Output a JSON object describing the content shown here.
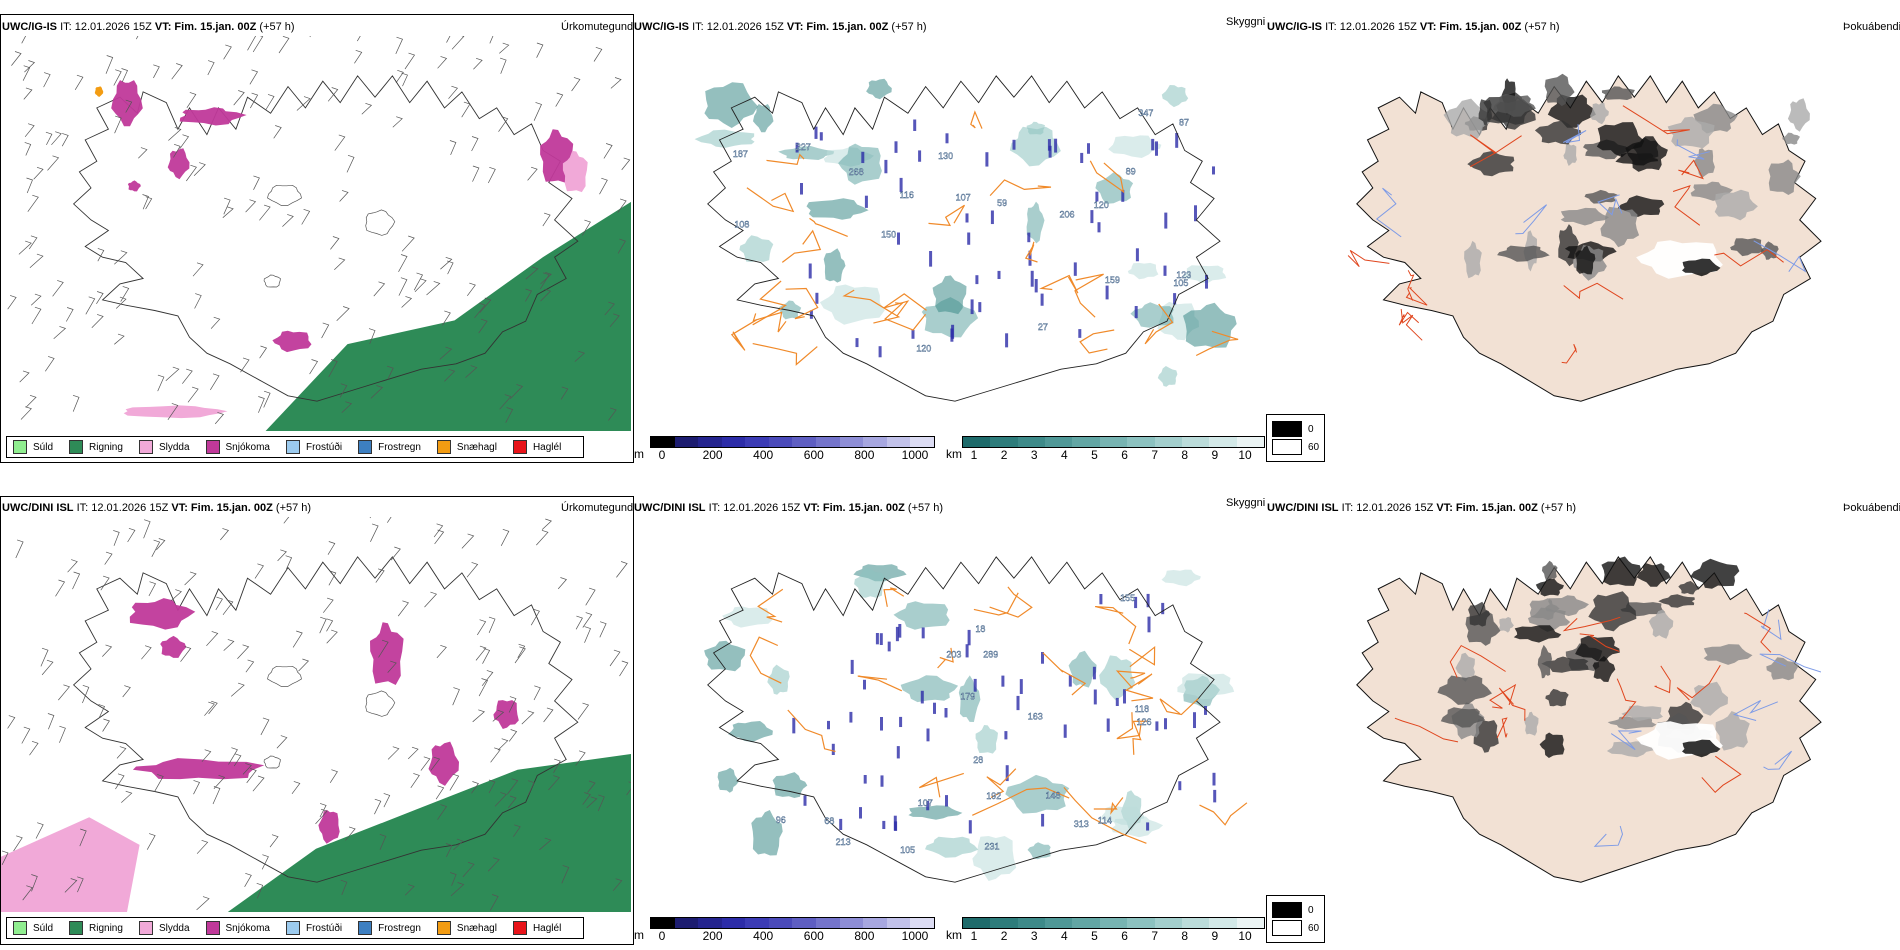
{
  "colors": {
    "rain": "#2e8b57",
    "snow": "#c0399a",
    "sleet": "#f1a9d8",
    "drizzle": "#90ee90",
    "freezing_drizzle": "#9ccbef",
    "freezing_rain": "#3d7fc1",
    "snow_grains": "#f39c12",
    "hail": "#e8141a",
    "road": "#f08a2a",
    "road_red": "#e0461e",
    "fog_land": "#f2e1d4"
  },
  "rows": [
    {
      "model": "UWC/IG-IS",
      "it_label": "IT: 12.01.2026 15Z",
      "vt_label": "VT: Fim. 15.jan. 00Z",
      "lead": "(+57 h)",
      "precip_title": "Úrkomutegund",
      "vis_title": "Skyggni",
      "fog_title": "Þokuábendi",
      "vis_numbers": [
        "159",
        "268",
        "347",
        "150",
        "206",
        "105",
        "123",
        "116",
        "187",
        "108",
        "59",
        "120",
        "89",
        "27",
        "130",
        "120",
        "87",
        "107",
        "227"
      ]
    },
    {
      "model": "UWC/DINI ISL",
      "it_label": "IT: 12.01.2026 15Z",
      "vt_label": "VT: Fim. 15.jan. 00Z",
      "lead": "(+57 h)",
      "precip_title": "Úrkomutegund",
      "vis_title": "Skyggni",
      "fog_title": "Þokuábendi",
      "vis_numbers": [
        "213",
        "289",
        "28",
        "192",
        "163",
        "68",
        "18",
        "155",
        "96",
        "179",
        "203",
        "231",
        "114",
        "118",
        "126",
        "313",
        "105",
        "107",
        "148"
      ]
    }
  ],
  "precip_legend": [
    {
      "label": "Súld",
      "color": "#90ee90"
    },
    {
      "label": "Rigning",
      "color": "#2e8b57"
    },
    {
      "label": "Slydda",
      "color": "#f1a9d8"
    },
    {
      "label": "Snjókoma",
      "color": "#c0399a"
    },
    {
      "label": "Frostúði",
      "color": "#9ccbef"
    },
    {
      "label": "Frostregn",
      "color": "#3d7fc1"
    },
    {
      "label": "Snæhagl",
      "color": "#f39c12"
    },
    {
      "label": "Haglél",
      "color": "#e8141a"
    }
  ],
  "height_bar": {
    "unit": "m",
    "ticks": [
      "0",
      "200",
      "400",
      "600",
      "800",
      "1000"
    ],
    "colors": [
      "#000000",
      "#1c1c70",
      "#24248f",
      "#2c2ca8",
      "#3b3bb5",
      "#4a4aba",
      "#5e5ec2",
      "#7474cb",
      "#8e8ed6",
      "#a7a7e0",
      "#c2c2ea",
      "#dcdcf3"
    ]
  },
  "vis_bar": {
    "unit": "km",
    "ticks": [
      "1",
      "2",
      "3",
      "4",
      "5",
      "6",
      "7",
      "8",
      "9",
      "10"
    ],
    "colors": [
      "#1e6b6b",
      "#2d7c7b",
      "#3d8a89",
      "#4f9897",
      "#62a6a4",
      "#77b4b2",
      "#8cc2c0",
      "#a3cfcd",
      "#bbdcda",
      "#d3e9e8",
      "#ebf4f4"
    ]
  },
  "fog_legend": [
    {
      "label": "0",
      "color": "#000000"
    },
    {
      "label": "60",
      "color": "#ffffff"
    }
  ]
}
